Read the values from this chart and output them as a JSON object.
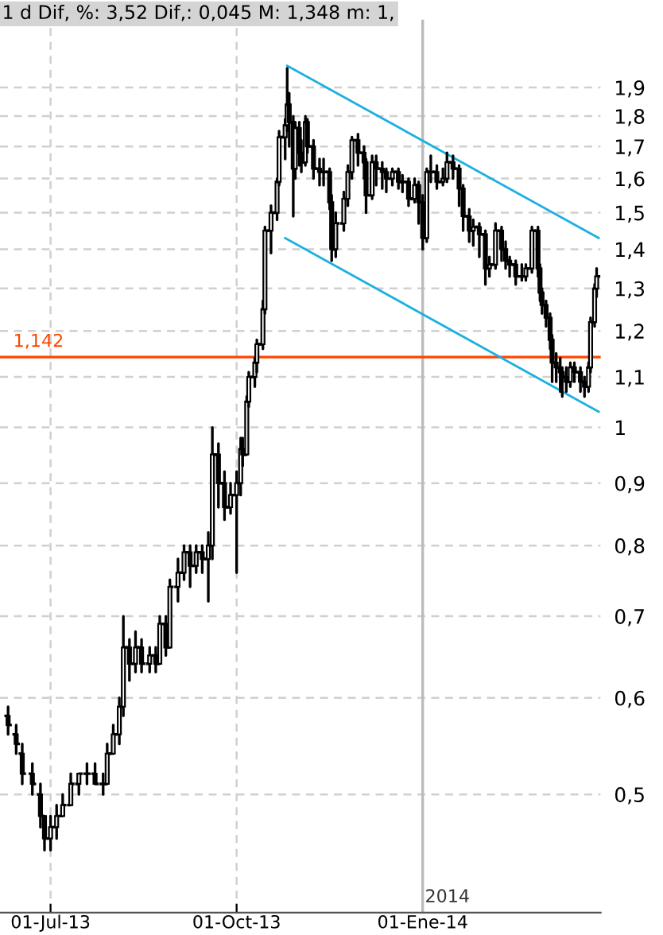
{
  "chart_data": {
    "type": "candlestick",
    "title": "1 d Dif, %: 3,52 Dif,: 0,045 M: 1,348 m: 1,",
    "color": "#000000",
    "log": "y",
    "grid": true,
    "x": [
      "2013-06-10",
      "2013-06-14",
      "2013-06-17",
      "2013-06-22",
      "2013-06-26",
      "2013-06-28",
      "2013-07-01",
      "2013-07-04",
      "2013-07-07",
      "2013-07-11",
      "2013-07-15",
      "2013-07-19",
      "2013-07-23",
      "2013-07-27",
      "2013-07-29",
      "2013-08-01",
      "2013-08-04",
      "2013-08-06",
      "2013-08-09",
      "2013-08-12",
      "2013-08-15",
      "2013-08-19",
      "2013-08-22",
      "2013-08-24",
      "2013-08-27",
      "2013-08-29",
      "2013-09-02",
      "2013-09-05",
      "2013-09-08",
      "2013-09-11",
      "2013-09-14",
      "2013-09-17",
      "2013-09-19",
      "2013-09-22",
      "2013-09-25",
      "2013-09-28",
      "2013-10-01",
      "2013-10-03",
      "2013-10-04",
      "2013-10-06",
      "2013-10-07",
      "2013-10-10",
      "2013-10-11",
      "2013-10-14",
      "2013-10-15",
      "2013-10-18",
      "2013-10-21",
      "2013-10-22",
      "2013-10-25",
      "2013-10-26",
      "2013-10-27",
      "2013-10-29",
      "2013-10-30",
      "2013-11-01",
      "2013-11-02",
      "2013-11-04",
      "2013-11-05",
      "2013-11-08",
      "2013-11-11",
      "2013-11-13",
      "2013-11-16",
      "2013-11-17",
      "2013-11-19",
      "2013-11-23",
      "2013-11-25",
      "2013-11-27",
      "2013-11-30",
      "2013-12-03",
      "2013-12-04",
      "2013-12-07",
      "2013-12-09",
      "2013-12-12",
      "2013-12-14",
      "2013-12-17",
      "2013-12-20",
      "2013-12-22",
      "2013-12-25",
      "2013-12-28",
      "2013-12-30",
      "2014-01-01",
      "2014-01-03",
      "2014-01-05",
      "2014-01-08",
      "2014-01-11",
      "2014-01-13",
      "2014-01-16",
      "2014-01-19",
      "2014-01-21",
      "2014-01-24",
      "2014-01-26",
      "2014-01-29",
      "2014-02-01",
      "2014-02-03",
      "2014-02-06",
      "2014-02-09",
      "2014-02-11",
      "2014-02-13",
      "2014-02-16",
      "2014-02-19",
      "2014-02-21",
      "2014-02-24",
      "2014-02-27",
      "2014-02-28",
      "2014-03-01",
      "2014-03-03",
      "2014-03-05",
      "2014-03-06",
      "2014-03-08",
      "2014-03-10",
      "2014-03-11",
      "2014-03-13",
      "2014-03-15",
      "2014-03-17",
      "2014-03-20",
      "2014-03-22",
      "2014-03-24",
      "2014-03-25",
      "2014-03-27",
      "2014-03-28"
    ],
    "ohlc": [
      [
        0.58,
        0.59,
        0.56,
        0.57
      ],
      [
        0.56,
        0.57,
        0.54,
        0.55
      ],
      [
        0.54,
        0.55,
        0.51,
        0.52
      ],
      [
        0.52,
        0.53,
        0.5,
        0.51
      ],
      [
        0.5,
        0.51,
        0.47,
        0.48
      ],
      [
        0.48,
        0.48,
        0.45,
        0.46
      ],
      [
        0.46,
        0.48,
        0.45,
        0.47
      ],
      [
        0.47,
        0.49,
        0.46,
        0.48
      ],
      [
        0.48,
        0.5,
        0.48,
        0.49
      ],
      [
        0.49,
        0.52,
        0.49,
        0.51
      ],
      [
        0.51,
        0.52,
        0.5,
        0.52
      ],
      [
        0.52,
        0.53,
        0.51,
        0.52
      ],
      [
        0.52,
        0.53,
        0.51,
        0.51
      ],
      [
        0.51,
        0.52,
        0.5,
        0.51
      ],
      [
        0.51,
        0.55,
        0.51,
        0.54
      ],
      [
        0.54,
        0.57,
        0.54,
        0.56
      ],
      [
        0.56,
        0.6,
        0.55,
        0.59
      ],
      [
        0.59,
        0.7,
        0.58,
        0.66
      ],
      [
        0.66,
        0.67,
        0.62,
        0.64
      ],
      [
        0.64,
        0.68,
        0.63,
        0.66
      ],
      [
        0.66,
        0.67,
        0.63,
        0.64
      ],
      [
        0.64,
        0.66,
        0.63,
        0.65
      ],
      [
        0.65,
        0.66,
        0.63,
        0.64
      ],
      [
        0.64,
        0.7,
        0.64,
        0.69
      ],
      [
        0.69,
        0.7,
        0.65,
        0.66
      ],
      [
        0.66,
        0.75,
        0.66,
        0.74
      ],
      [
        0.74,
        0.78,
        0.72,
        0.76
      ],
      [
        0.76,
        0.8,
        0.75,
        0.79
      ],
      [
        0.79,
        0.8,
        0.74,
        0.77
      ],
      [
        0.77,
        0.8,
        0.76,
        0.79
      ],
      [
        0.79,
        0.8,
        0.76,
        0.78
      ],
      [
        0.78,
        0.82,
        0.72,
        0.8
      ],
      [
        0.8,
        1.0,
        0.78,
        0.95
      ],
      [
        0.95,
        0.97,
        0.86,
        0.9
      ],
      [
        0.9,
        0.92,
        0.84,
        0.86
      ],
      [
        0.86,
        0.9,
        0.85,
        0.88
      ],
      [
        0.88,
        0.92,
        0.76,
        0.9
      ],
      [
        0.9,
        0.98,
        0.88,
        0.96
      ],
      [
        0.96,
        0.98,
        0.93,
        0.95
      ],
      [
        0.95,
        1.06,
        0.95,
        1.05
      ],
      [
        1.05,
        1.11,
        1.04,
        1.1
      ],
      [
        1.1,
        1.14,
        1.08,
        1.13
      ],
      [
        1.13,
        1.18,
        1.11,
        1.17
      ],
      [
        1.17,
        1.27,
        1.16,
        1.25
      ],
      [
        1.25,
        1.46,
        1.24,
        1.45
      ],
      [
        1.45,
        1.52,
        1.39,
        1.5
      ],
      [
        1.5,
        1.6,
        1.48,
        1.59
      ],
      [
        1.59,
        1.75,
        1.58,
        1.73
      ],
      [
        1.73,
        1.79,
        1.66,
        1.77
      ],
      [
        1.77,
        1.97,
        1.75,
        1.84
      ],
      [
        1.84,
        1.88,
        1.7,
        1.78
      ],
      [
        1.78,
        1.8,
        1.49,
        1.63
      ],
      [
        1.63,
        1.78,
        1.6,
        1.76
      ],
      [
        1.76,
        1.78,
        1.64,
        1.68
      ],
      [
        1.68,
        1.72,
        1.62,
        1.65
      ],
      [
        1.65,
        1.8,
        1.64,
        1.78
      ],
      [
        1.78,
        1.79,
        1.68,
        1.7
      ],
      [
        1.7,
        1.72,
        1.6,
        1.63
      ],
      [
        1.63,
        1.66,
        1.58,
        1.62
      ],
      [
        1.62,
        1.66,
        1.58,
        1.62
      ],
      [
        1.62,
        1.63,
        1.51,
        1.53
      ],
      [
        1.53,
        1.55,
        1.37,
        1.4
      ],
      [
        1.4,
        1.5,
        1.38,
        1.47
      ],
      [
        1.47,
        1.56,
        1.45,
        1.54
      ],
      [
        1.54,
        1.64,
        1.52,
        1.62
      ],
      [
        1.62,
        1.73,
        1.6,
        1.72
      ],
      [
        1.72,
        1.74,
        1.64,
        1.68
      ],
      [
        1.68,
        1.7,
        1.6,
        1.65
      ],
      [
        1.65,
        1.66,
        1.5,
        1.55
      ],
      [
        1.55,
        1.67,
        1.54,
        1.65
      ],
      [
        1.65,
        1.67,
        1.58,
        1.63
      ],
      [
        1.63,
        1.65,
        1.57,
        1.62
      ],
      [
        1.62,
        1.63,
        1.56,
        1.6
      ],
      [
        1.6,
        1.63,
        1.58,
        1.62
      ],
      [
        1.62,
        1.63,
        1.57,
        1.59
      ],
      [
        1.59,
        1.61,
        1.56,
        1.59
      ],
      [
        1.59,
        1.6,
        1.52,
        1.54
      ],
      [
        1.54,
        1.6,
        1.53,
        1.58
      ],
      [
        1.58,
        1.59,
        1.47,
        1.53
      ],
      [
        1.53,
        1.55,
        1.4,
        1.43
      ],
      [
        1.43,
        1.63,
        1.42,
        1.62
      ],
      [
        1.62,
        1.67,
        1.59,
        1.62
      ],
      [
        1.62,
        1.64,
        1.57,
        1.59
      ],
      [
        1.59,
        1.63,
        1.58,
        1.6
      ],
      [
        1.6,
        1.68,
        1.59,
        1.65
      ],
      [
        1.65,
        1.67,
        1.6,
        1.63
      ],
      [
        1.63,
        1.64,
        1.52,
        1.57
      ],
      [
        1.57,
        1.58,
        1.45,
        1.49
      ],
      [
        1.49,
        1.51,
        1.42,
        1.45
      ],
      [
        1.45,
        1.48,
        1.41,
        1.46
      ],
      [
        1.46,
        1.47,
        1.38,
        1.44
      ],
      [
        1.44,
        1.45,
        1.31,
        1.35
      ],
      [
        1.35,
        1.38,
        1.33,
        1.36
      ],
      [
        1.36,
        1.47,
        1.35,
        1.45
      ],
      [
        1.45,
        1.46,
        1.37,
        1.4
      ],
      [
        1.4,
        1.42,
        1.35,
        1.37
      ],
      [
        1.37,
        1.38,
        1.33,
        1.36
      ],
      [
        1.36,
        1.37,
        1.31,
        1.33
      ],
      [
        1.33,
        1.36,
        1.32,
        1.33
      ],
      [
        1.33,
        1.36,
        1.32,
        1.35
      ],
      [
        1.35,
        1.46,
        1.34,
        1.45
      ],
      [
        1.45,
        1.46,
        1.33,
        1.35
      ],
      [
        1.35,
        1.36,
        1.27,
        1.29
      ],
      [
        1.29,
        1.3,
        1.24,
        1.26
      ],
      [
        1.26,
        1.27,
        1.21,
        1.23
      ],
      [
        1.23,
        1.24,
        1.16,
        1.18
      ],
      [
        1.18,
        1.19,
        1.09,
        1.13
      ],
      [
        1.13,
        1.15,
        1.09,
        1.12
      ],
      [
        1.12,
        1.14,
        1.07,
        1.11
      ],
      [
        1.11,
        1.12,
        1.06,
        1.1
      ],
      [
        1.1,
        1.12,
        1.07,
        1.09
      ],
      [
        1.09,
        1.13,
        1.08,
        1.12
      ],
      [
        1.12,
        1.13,
        1.09,
        1.11
      ],
      [
        1.11,
        1.12,
        1.07,
        1.09
      ],
      [
        1.09,
        1.1,
        1.06,
        1.08
      ],
      [
        1.08,
        1.13,
        1.07,
        1.12
      ],
      [
        1.12,
        1.23,
        1.11,
        1.22
      ],
      [
        1.22,
        1.31,
        1.21,
        1.3
      ],
      [
        1.3,
        1.35,
        1.28,
        1.33
      ]
    ],
    "series": [
      {
        "type": "line",
        "x": [
          "2013-10-26",
          "2014-03-29"
        ],
        "values": [
          1.98,
          1.43
        ],
        "color": "#1ab0e0"
      },
      {
        "type": "line",
        "x": [
          "2013-10-25",
          "2014-03-29"
        ],
        "values": [
          1.43,
          1.03
        ],
        "color": "#1ab0e0"
      }
    ],
    "ref_lines": [
      {
        "axis": "y",
        "value": 1.142,
        "label": "1,142",
        "color": "#ff4500",
        "line_style": "solid"
      },
      {
        "axis": "x",
        "value": "2014-01-01",
        "label": "2014",
        "color": "#bbbbbb",
        "line_style": "solid"
      }
    ],
    "xlim": [
      "2013-06-06",
      "2014-03-30"
    ],
    "xticks": [
      {
        "value": "2013-07-01",
        "label": "01-Jul-13"
      },
      {
        "value": "2013-10-01",
        "label": "01-Oct-13"
      },
      {
        "value": "2014-01-01",
        "label": "01-Ene-14"
      }
    ],
    "ylim": [
      0.4,
      2.16
    ],
    "yticks": [
      {
        "value": 0.5,
        "label": "0,5"
      },
      {
        "value": 0.6,
        "label": "0,6"
      },
      {
        "value": 0.7,
        "label": "0,7"
      },
      {
        "value": 0.8,
        "label": "0,8"
      },
      {
        "value": 0.9,
        "label": "0,9"
      },
      1,
      {
        "value": 1.1,
        "label": "1,1"
      },
      {
        "value": 1.2,
        "label": "1,2"
      },
      {
        "value": 1.3,
        "label": "1,3"
      },
      {
        "value": 1.4,
        "label": "1,4"
      },
      {
        "value": 1.5,
        "label": "1,5"
      },
      {
        "value": 1.6,
        "label": "1,6"
      },
      {
        "value": 1.7,
        "label": "1,7"
      },
      {
        "value": 1.8,
        "label": "1,8"
      },
      {
        "value": 1.9,
        "label": "1,9"
      }
    ]
  }
}
